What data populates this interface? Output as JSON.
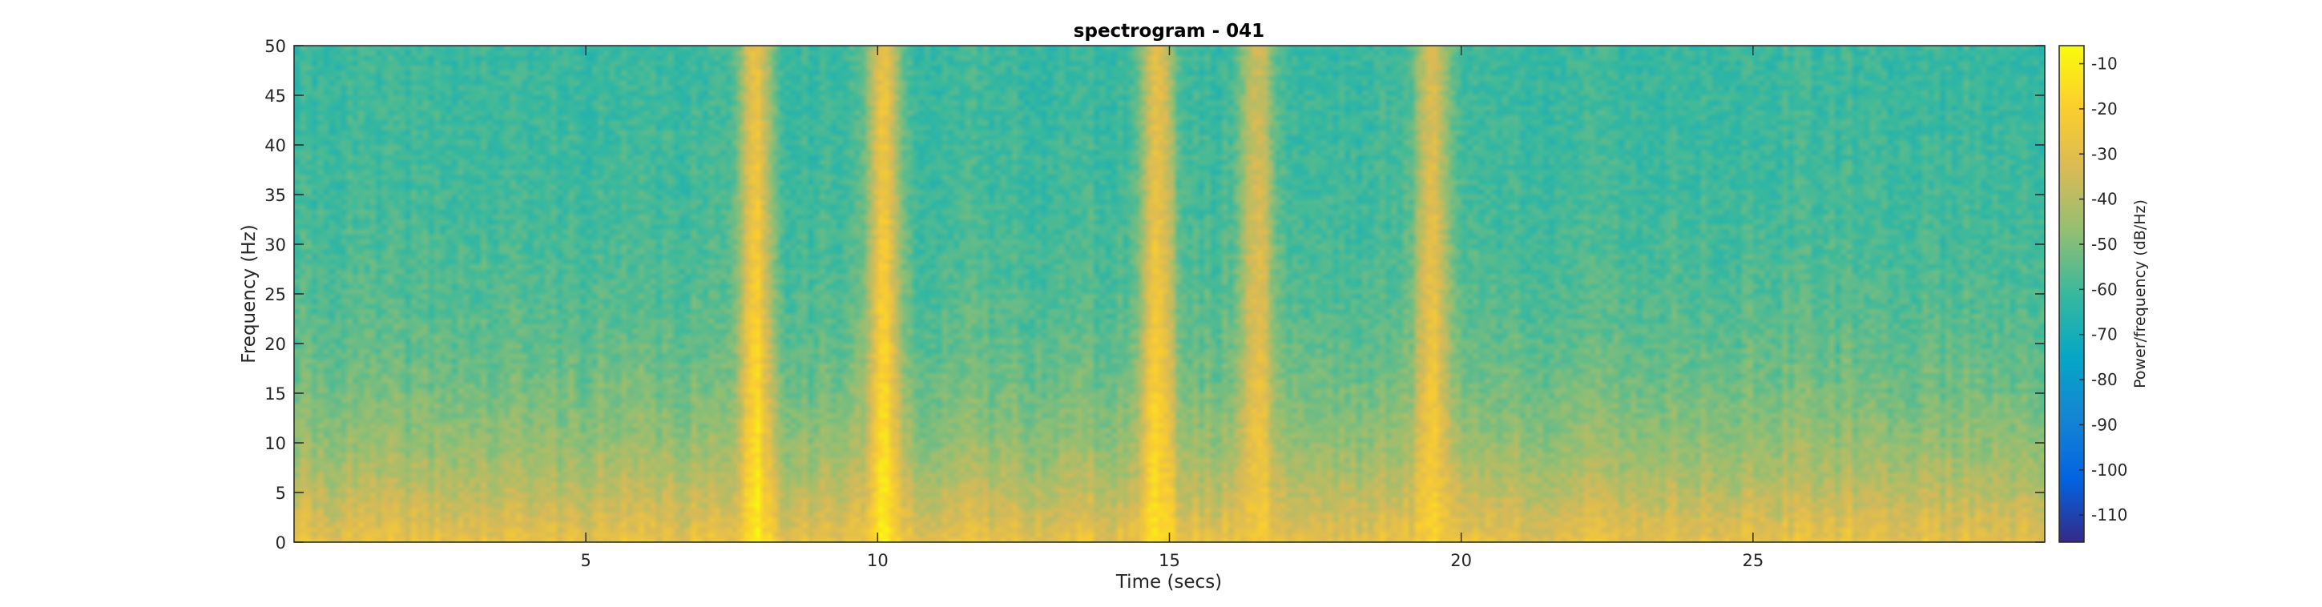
{
  "chart_data": {
    "type": "heatmap",
    "title": "spectrogram - 041",
    "xlabel": "Time (secs)",
    "ylabel": "Frequency (Hz)",
    "xlim": [
      0,
      30
    ],
    "ylim": [
      0,
      50
    ],
    "x_ticks": [
      5,
      10,
      15,
      20,
      25
    ],
    "y_ticks": [
      0,
      5,
      10,
      15,
      20,
      25,
      30,
      35,
      40,
      45,
      50
    ],
    "grid": false,
    "colorbar": {
      "label": "Power/frequency (dB/Hz)",
      "range": [
        -116,
        -6
      ],
      "ticks": [
        -10,
        -20,
        -30,
        -40,
        -50,
        -60,
        -70,
        -80,
        -90,
        -100,
        -110
      ],
      "colormap": "parula"
    },
    "description_values": {
      "low_freq_band_power_db": -28,
      "high_freq_band_power_db": -62,
      "bursts": [
        {
          "t": 7.9,
          "power_db": -12
        },
        {
          "t": 10.1,
          "power_db": -14
        },
        {
          "t": 14.8,
          "power_db": -16
        },
        {
          "t": 16.5,
          "power_db": -22
        },
        {
          "t": 19.5,
          "power_db": -18
        }
      ]
    }
  },
  "colors": {
    "axis": "#262626",
    "parula": [
      "#352a87",
      "#0363e1",
      "#1485d4",
      "#06a7c6",
      "#38b99e",
      "#92bf73",
      "#d9ba56",
      "#fcce2e",
      "#f9fb0e"
    ]
  }
}
